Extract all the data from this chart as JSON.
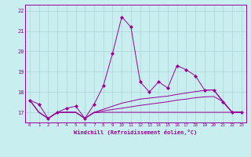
{
  "xlabel": "Windchill (Refroidissement éolien,°C)",
  "background_color": "#c8eef0",
  "grid_color": "#afd4d8",
  "line_color": "#990099",
  "x": [
    0,
    1,
    2,
    3,
    4,
    5,
    6,
    7,
    8,
    9,
    10,
    11,
    12,
    13,
    14,
    15,
    16,
    17,
    18,
    19,
    20,
    21,
    22,
    23
  ],
  "y_main": [
    17.6,
    17.4,
    16.7,
    17.0,
    17.2,
    17.3,
    16.7,
    17.4,
    18.3,
    19.9,
    21.7,
    21.2,
    18.5,
    18.0,
    18.5,
    18.2,
    19.3,
    19.1,
    18.8,
    18.1,
    18.1,
    17.5,
    17.0,
    17.0
  ],
  "y_line1": [
    17.6,
    17.0,
    16.7,
    17.0,
    17.0,
    17.0,
    16.7,
    17.0,
    17.15,
    17.3,
    17.45,
    17.55,
    17.65,
    17.7,
    17.75,
    17.8,
    17.88,
    17.95,
    18.02,
    18.08,
    18.1,
    17.55,
    17.0,
    17.0
  ],
  "y_line2": [
    17.6,
    17.0,
    16.7,
    17.0,
    17.0,
    17.0,
    16.7,
    17.0,
    17.07,
    17.14,
    17.2,
    17.27,
    17.34,
    17.4,
    17.46,
    17.52,
    17.6,
    17.65,
    17.72,
    17.76,
    17.78,
    17.52,
    17.0,
    17.0
  ],
  "y_line3": [
    17.6,
    17.0,
    16.7,
    16.98,
    17.0,
    17.0,
    16.7,
    16.98,
    17.0,
    17.0,
    17.0,
    17.0,
    17.0,
    17.0,
    17.0,
    17.0,
    17.0,
    17.0,
    17.0,
    17.0,
    17.0,
    17.0,
    17.0,
    17.0
  ],
  "ylim": [
    16.5,
    22.3
  ],
  "xlim": [
    -0.5,
    23.5
  ],
  "yticks": [
    17,
    18,
    19,
    20,
    21,
    22
  ],
  "xticks": [
    0,
    1,
    2,
    3,
    4,
    5,
    6,
    7,
    8,
    9,
    10,
    11,
    12,
    13,
    14,
    15,
    16,
    17,
    18,
    19,
    20,
    21,
    22,
    23
  ]
}
